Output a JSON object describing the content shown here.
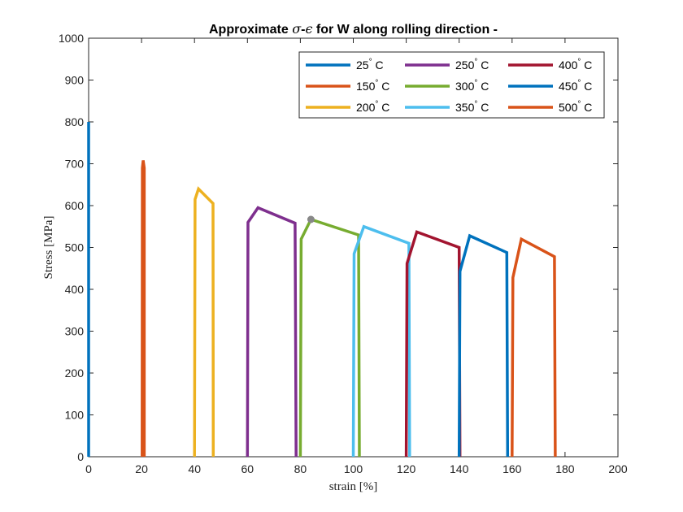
{
  "chart_data": {
    "type": "line",
    "title": "Approximate σ-ϵ for W along rolling direction -",
    "xlabel": "strain [%]",
    "ylabel": "Stress [MPa]",
    "xlim": [
      0,
      200
    ],
    "ylim": [
      0,
      1000
    ],
    "xticks": [
      "0",
      "20",
      "40",
      "60",
      "80",
      "100",
      "120",
      "140",
      "160",
      "180",
      "200"
    ],
    "yticks": [
      "0",
      "100",
      "200",
      "300",
      "400",
      "500",
      "600",
      "700",
      "800",
      "900",
      "1000"
    ],
    "grid": false,
    "legend_position": "top-right",
    "series": [
      {
        "name": "25° C",
        "color": "#0072BD",
        "points": [
          [
            0,
            0
          ],
          [
            0,
            800
          ]
        ]
      },
      {
        "name": "150° C",
        "color": "#D95319",
        "points": [
          [
            20.2,
            0
          ],
          [
            20.3,
            690
          ],
          [
            20.6,
            708
          ],
          [
            21.0,
            690
          ],
          [
            21.0,
            0
          ]
        ]
      },
      {
        "name": "200° C",
        "color": "#EDB120",
        "points": [
          [
            40.0,
            0
          ],
          [
            40.2,
            615
          ],
          [
            41.5,
            640
          ],
          [
            47.0,
            605
          ],
          [
            47.1,
            0
          ]
        ]
      },
      {
        "name": "250° C",
        "color": "#7E2F8E",
        "points": [
          [
            60.0,
            0
          ],
          [
            60.2,
            560
          ],
          [
            64.0,
            595
          ],
          [
            78.0,
            558
          ],
          [
            78.4,
            0
          ]
        ]
      },
      {
        "name": "300° C",
        "color": "#77AC30",
        "points": [
          [
            80.0,
            0
          ],
          [
            80.3,
            520
          ],
          [
            84.0,
            567
          ],
          [
            102.0,
            530
          ],
          [
            102.3,
            0
          ]
        ]
      },
      {
        "name": "350° C",
        "color": "#4DBEEE",
        "points": [
          [
            100.0,
            0
          ],
          [
            100.3,
            485
          ],
          [
            104.0,
            550
          ],
          [
            121.0,
            510
          ],
          [
            121.3,
            0
          ]
        ]
      },
      {
        "name": "400° C",
        "color": "#A2142F",
        "points": [
          [
            120.0,
            0
          ],
          [
            120.3,
            462
          ],
          [
            124.0,
            537
          ],
          [
            140.0,
            500
          ],
          [
            140.3,
            0
          ]
        ]
      },
      {
        "name": "450° C",
        "color": "#0072BD",
        "points": [
          [
            140.0,
            0
          ],
          [
            140.3,
            443
          ],
          [
            144.0,
            528
          ],
          [
            158.0,
            488
          ],
          [
            158.3,
            0
          ]
        ]
      },
      {
        "name": "500° C",
        "color": "#D95319",
        "points": [
          [
            160.0,
            0
          ],
          [
            160.3,
            428
          ],
          [
            163.5,
            520
          ],
          [
            176.0,
            478
          ],
          [
            176.3,
            0
          ]
        ]
      }
    ],
    "annotations": [
      {
        "type": "marker",
        "x": 84,
        "y": 567,
        "color": "#888888"
      }
    ]
  }
}
